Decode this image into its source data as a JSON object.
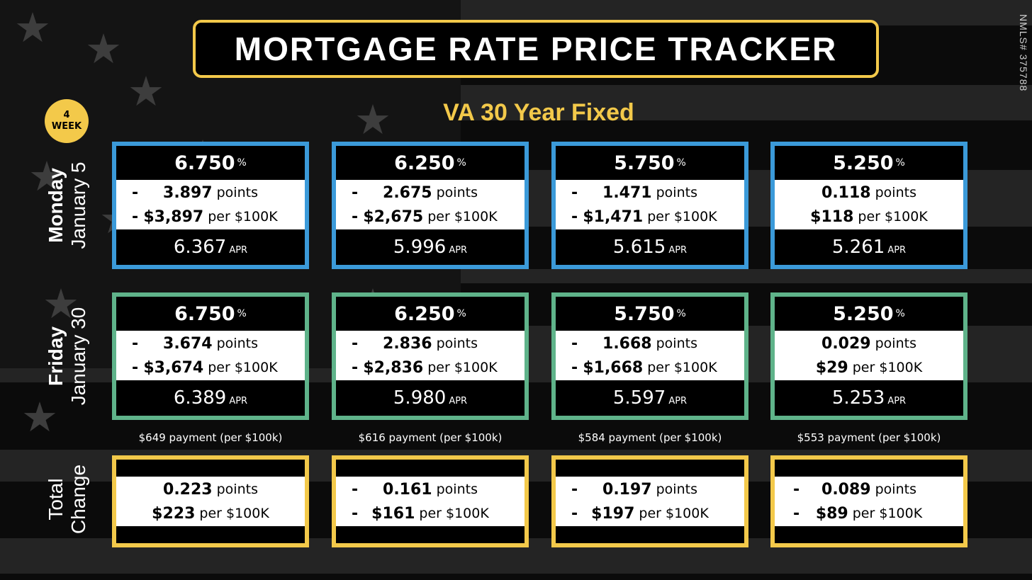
{
  "title": "MORTGAGE RATE PRICE TRACKER",
  "nmls": "NMLS# 375788",
  "badge": {
    "line1": "4",
    "line2": "WEEK"
  },
  "subtitle": "VA 30 Year Fixed",
  "rows": {
    "first": {
      "day": "Monday",
      "date": "January 5"
    },
    "second": {
      "day": "Friday",
      "date": "January 30"
    },
    "total": {
      "line1": "Total",
      "line2": "Change"
    }
  },
  "labels": {
    "pct": "%",
    "points": "points",
    "per": "per $100K",
    "apr": "APR"
  },
  "monday": [
    {
      "rate": "6.750",
      "sign1": "-",
      "points": "3.897",
      "sign2": "-",
      "dollars": "$3,897",
      "apr": "6.367"
    },
    {
      "rate": "6.250",
      "sign1": "-",
      "points": "2.675",
      "sign2": "-",
      "dollars": "$2,675",
      "apr": "5.996"
    },
    {
      "rate": "5.750",
      "sign1": "-",
      "points": "1.471",
      "sign2": "-",
      "dollars": "$1,471",
      "apr": "5.615"
    },
    {
      "rate": "5.250",
      "sign1": "",
      "points": "0.118",
      "sign2": "",
      "dollars": "$118",
      "apr": "5.261"
    }
  ],
  "friday": [
    {
      "rate": "6.750",
      "sign1": "-",
      "points": "3.674",
      "sign2": "-",
      "dollars": "$3,674",
      "apr": "6.389"
    },
    {
      "rate": "6.250",
      "sign1": "-",
      "points": "2.836",
      "sign2": "-",
      "dollars": "$2,836",
      "apr": "5.980"
    },
    {
      "rate": "5.750",
      "sign1": "-",
      "points": "1.668",
      "sign2": "-",
      "dollars": "$1,668",
      "apr": "5.597"
    },
    {
      "rate": "5.250",
      "sign1": "",
      "points": "0.029",
      "sign2": "",
      "dollars": "$29",
      "apr": "5.253"
    }
  ],
  "payments": [
    "$649 payment (per $100k)",
    "$616 payment (per $100k)",
    "$584 payment (per $100k)",
    "$553 payment (per $100k)"
  ],
  "change": [
    {
      "sign1": "",
      "points": "0.223",
      "sign2": "",
      "dollars": "$223"
    },
    {
      "sign1": "-",
      "points": "0.161",
      "sign2": "-",
      "dollars": "$161"
    },
    {
      "sign1": "-",
      "points": "0.197",
      "sign2": "-",
      "dollars": "$197"
    },
    {
      "sign1": "-",
      "points": "0.089",
      "sign2": "-",
      "dollars": "$89"
    }
  ],
  "colors": {
    "blue": "#3b9ad9",
    "green": "#5fb38a",
    "yellow": "#f3c94a"
  }
}
